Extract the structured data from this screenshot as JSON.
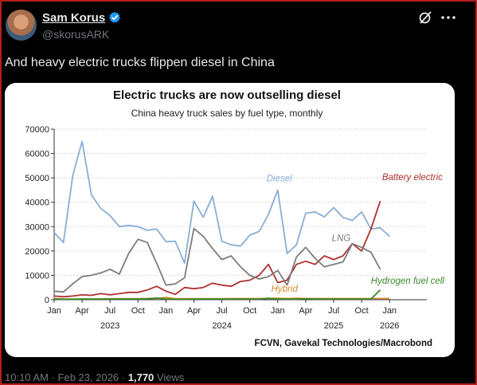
{
  "post": {
    "display_name": "Sam Korus",
    "handle": "@skorusARK",
    "text": "And heavy electric trucks flippen diesel in China",
    "time": "10:10 AM",
    "date": "Feb 23, 2026",
    "separator": "·",
    "views_count": "1,770",
    "views_label": "Views"
  },
  "colors": {
    "diesel": "#8aaed6",
    "battery_electric": "#b03030",
    "lng": "#7d7d7d",
    "hybrid": "#d98a2c",
    "hydrogen": "#3a8a2a",
    "verified": "#1d9bf0"
  },
  "icons": {
    "verified": "verified-badge-icon",
    "grok": "grok-icon",
    "more": "more-dots-icon"
  },
  "chart_data": {
    "type": "line",
    "title": "Electric trucks are now outselling diesel",
    "subtitle": "China heavy truck sales by fuel type, monthly",
    "source": "FCVN, Gavekal Technologies/Macrobond",
    "ylim": [
      0,
      70000
    ],
    "yticks": [
      0,
      10000,
      20000,
      30000,
      40000,
      50000,
      60000,
      70000
    ],
    "ytick_labels": [
      "0",
      "10000",
      "20000",
      "30000",
      "40000",
      "50000",
      "60000",
      "70000"
    ],
    "xlim": [
      0,
      40
    ],
    "xticks": [
      {
        "x": 0,
        "label": "Jan"
      },
      {
        "x": 3,
        "label": "Apr"
      },
      {
        "x": 6,
        "label": "Jul"
      },
      {
        "x": 9,
        "label": "Oct"
      },
      {
        "x": 12,
        "label": "Jan"
      },
      {
        "x": 15,
        "label": "Apr"
      },
      {
        "x": 18,
        "label": "Jul"
      },
      {
        "x": 21,
        "label": "Oct"
      },
      {
        "x": 24,
        "label": "Jan"
      },
      {
        "x": 27,
        "label": "Apr"
      },
      {
        "x": 30,
        "label": "Jul"
      },
      {
        "x": 33,
        "label": "Oct"
      },
      {
        "x": 36,
        "label": "Jan"
      }
    ],
    "year_labels": [
      {
        "x": 6,
        "label": "2023"
      },
      {
        "x": 18,
        "label": "2024"
      },
      {
        "x": 30,
        "label": "2025"
      },
      {
        "x": 36,
        "label": "2026"
      }
    ],
    "x": [
      0,
      1,
      2,
      3,
      4,
      5,
      6,
      7,
      8,
      9,
      10,
      11,
      12,
      13,
      14,
      15,
      16,
      17,
      18,
      19,
      20,
      21,
      22,
      23,
      24,
      25,
      26,
      27,
      28,
      29,
      30,
      31,
      32,
      33,
      34,
      35,
      36
    ],
    "series": [
      {
        "name": "Diesel",
        "key": "diesel",
        "label_x": 22.8,
        "label_y": 48500,
        "values": [
          27500,
          23500,
          51000,
          65000,
          43000,
          37500,
          34500,
          30000,
          30500,
          30000,
          28500,
          29000,
          23800,
          24000,
          15000,
          40500,
          33800,
          42500,
          24000,
          22500,
          22000,
          26500,
          28000,
          35000,
          45000,
          19000,
          22500,
          35500,
          36000,
          34000,
          37800,
          33800,
          32500,
          36000,
          29000,
          29500,
          26000
        ]
      },
      {
        "name": "Battery electric",
        "key": "battery_electric",
        "label_x": 35.2,
        "label_y": 49000,
        "values": [
          1500,
          1200,
          1500,
          2000,
          1800,
          2500,
          2000,
          2500,
          3000,
          3000,
          4000,
          5500,
          3500,
          2200,
          5000,
          4500,
          5000,
          6800,
          6000,
          5500,
          7500,
          8000,
          10000,
          14500,
          7000,
          8000,
          14500,
          15800,
          14500,
          18000,
          16500,
          18000,
          23000,
          20000,
          29000,
          40500,
          null
        ]
      },
      {
        "name": "LNG",
        "key": "lng",
        "label_x": 29.8,
        "label_y": 24000,
        "values": [
          3500,
          3200,
          6500,
          9500,
          10000,
          11000,
          12500,
          10500,
          19000,
          24800,
          23500,
          15000,
          6000,
          6500,
          9000,
          29200,
          26000,
          21000,
          16500,
          18000,
          13500,
          10000,
          8500,
          9500,
          12000,
          6000,
          17500,
          21500,
          17000,
          13500,
          14500,
          15500,
          23000,
          21500,
          19500,
          12500,
          null
        ]
      },
      {
        "name": "Hybrid",
        "key": "hybrid",
        "label_x": 23.3,
        "label_y": 3200,
        "values": [
          500,
          300,
          300,
          300,
          300,
          300,
          400,
          400,
          400,
          400,
          500,
          500,
          900,
          400,
          400,
          400,
          400,
          400,
          400,
          500,
          500,
          500,
          500,
          500,
          600,
          500,
          600,
          500,
          500,
          500,
          500,
          500,
          500,
          500,
          500,
          500,
          500
        ]
      },
      {
        "name": "Hydrogen fuel cell",
        "key": "hydrogen",
        "label_x": 34.0,
        "label_y": 6500,
        "values": [
          300,
          200,
          200,
          300,
          300,
          300,
          300,
          300,
          300,
          300,
          400,
          700,
          300,
          200,
          200,
          300,
          300,
          300,
          300,
          300,
          300,
          300,
          300,
          600,
          300,
          300,
          300,
          400,
          300,
          300,
          300,
          300,
          300,
          300,
          300,
          4000,
          null
        ]
      }
    ]
  }
}
